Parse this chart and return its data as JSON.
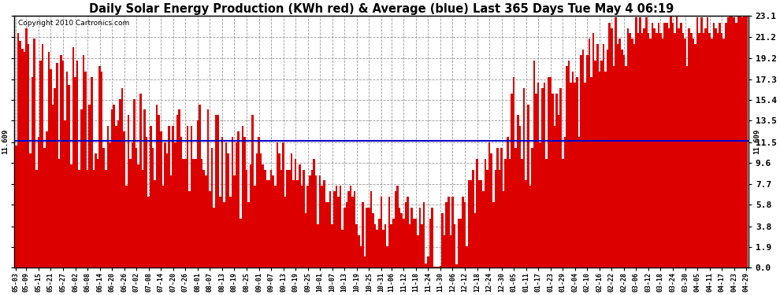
{
  "title": "Daily Solar Energy Production (KWh red) & Average (blue) Last 365 Days Tue May 4 06:19",
  "copyright": "Copyright 2010 Cartronics.com",
  "average_label": "11.609",
  "average_value": 11.609,
  "yticks": [
    0.0,
    1.9,
    3.8,
    5.8,
    7.7,
    9.6,
    11.5,
    13.5,
    15.4,
    17.3,
    19.2,
    21.2,
    23.1
  ],
  "bar_color": "#dd0000",
  "avg_line_color": "#0000cc",
  "background_color": "#ffffff",
  "grid_color": "#999999",
  "title_fontsize": 10.5,
  "x_labels": [
    "05-03",
    "05-09",
    "05-15",
    "05-21",
    "05-27",
    "06-02",
    "06-08",
    "06-14",
    "06-20",
    "06-26",
    "07-02",
    "07-08",
    "07-14",
    "07-20",
    "07-26",
    "08-01",
    "08-07",
    "08-13",
    "08-19",
    "08-25",
    "09-01",
    "09-07",
    "09-13",
    "09-19",
    "09-25",
    "10-01",
    "10-07",
    "10-13",
    "10-19",
    "10-25",
    "10-31",
    "11-06",
    "11-12",
    "11-18",
    "11-24",
    "11-30",
    "12-06",
    "12-12",
    "12-18",
    "12-24",
    "12-30",
    "01-05",
    "01-11",
    "01-17",
    "01-23",
    "01-29",
    "02-04",
    "02-10",
    "02-16",
    "02-22",
    "02-28",
    "03-06",
    "03-12",
    "03-18",
    "03-24",
    "03-30",
    "04-05",
    "04-11",
    "04-17",
    "04-23",
    "04-29"
  ],
  "values": [
    11.2,
    21.5,
    20.8,
    20.1,
    19.8,
    22.0,
    20.5,
    10.5,
    17.5,
    21.0,
    9.0,
    12.0,
    19.0,
    20.5,
    11.0,
    12.5,
    19.8,
    18.2,
    15.0,
    16.5,
    18.8,
    10.0,
    19.5,
    19.0,
    13.5,
    18.0,
    16.8,
    9.5,
    20.2,
    17.5,
    19.0,
    9.0,
    14.5,
    19.5,
    18.0,
    9.0,
    15.0,
    17.5,
    9.0,
    10.5,
    10.0,
    18.5,
    18.0,
    11.0,
    9.0,
    13.0,
    11.5,
    14.5,
    15.0,
    13.0,
    13.5,
    15.5,
    16.5,
    12.5,
    7.5,
    14.0,
    10.0,
    11.5,
    15.5,
    11.0,
    9.5,
    16.0,
    9.0,
    14.5,
    12.0,
    6.5,
    13.0,
    11.0,
    8.0,
    15.0,
    14.0,
    12.5,
    7.5,
    11.5,
    10.5,
    13.0,
    8.5,
    13.0,
    11.5,
    14.0,
    14.5,
    12.0,
    10.0,
    10.0,
    13.0,
    7.0,
    13.0,
    10.0,
    10.0,
    13.5,
    15.0,
    10.0,
    9.0,
    8.5,
    14.5,
    7.0,
    11.0,
    5.5,
    14.0,
    14.0,
    6.5,
    12.0,
    6.0,
    11.5,
    10.5,
    6.5,
    12.0,
    8.5,
    11.5,
    12.5,
    4.5,
    13.0,
    12.0,
    9.0,
    6.0,
    9.5,
    14.0,
    7.5,
    10.5,
    12.0,
    10.5,
    9.5,
    9.0,
    8.0,
    8.0,
    9.0,
    8.5,
    7.5,
    11.5,
    10.5,
    9.0,
    11.5,
    6.5,
    9.0,
    9.0,
    10.5,
    8.0,
    10.0,
    8.0,
    9.5,
    7.5,
    9.0,
    5.0,
    7.5,
    8.5,
    9.0,
    10.0,
    8.5,
    4.0,
    8.5,
    7.5,
    8.0,
    6.0,
    6.0,
    7.0,
    4.0,
    7.0,
    7.5,
    6.5,
    7.5,
    3.5,
    5.5,
    6.0,
    7.0,
    7.5,
    6.5,
    7.0,
    4.0,
    3.0,
    2.0,
    6.0,
    1.0,
    5.5,
    5.5,
    7.0,
    5.0,
    4.0,
    3.5,
    4.5,
    6.5,
    3.5,
    4.0,
    2.0,
    6.5,
    4.0,
    4.5,
    7.0,
    7.5,
    5.5,
    5.0,
    4.5,
    6.0,
    6.5,
    4.0,
    5.5,
    4.5,
    4.5,
    3.0,
    5.5,
    4.0,
    6.0,
    0.4,
    1.0,
    4.5,
    5.5,
    0.1,
    0.1,
    0.1,
    0.2,
    5.0,
    3.0,
    6.0,
    6.5,
    3.0,
    6.5,
    4.0,
    0.3,
    4.5,
    4.5,
    6.5,
    6.0,
    2.0,
    8.0,
    8.0,
    9.0,
    5.0,
    10.0,
    8.0,
    8.0,
    7.0,
    10.0,
    9.0,
    11.5,
    10.5,
    6.0,
    9.0,
    11.0,
    9.0,
    11.0,
    7.0,
    10.0,
    12.0,
    10.0,
    16.0,
    17.5,
    11.0,
    14.0,
    13.0,
    10.0,
    16.5,
    8.0,
    15.0,
    7.5,
    11.0,
    19.0,
    16.0,
    17.0,
    11.5,
    16.5,
    17.0,
    10.0,
    17.5,
    17.5,
    16.0,
    13.0,
    16.0,
    14.0,
    16.5,
    10.0,
    12.0,
    18.5,
    19.0,
    17.0,
    18.0,
    17.0,
    17.5,
    12.0,
    19.5,
    20.0,
    17.0,
    19.5,
    21.0,
    17.5,
    21.5,
    19.0,
    20.5,
    18.0,
    19.0,
    20.5,
    18.0,
    20.0,
    22.5,
    22.0,
    18.5,
    23.0,
    20.5,
    21.0,
    20.0,
    19.5,
    18.5,
    22.0,
    21.5,
    21.0,
    20.5,
    23.0,
    21.5,
    23.0,
    21.5,
    22.0,
    23.0,
    21.5,
    21.0,
    22.5,
    22.0,
    21.5,
    22.5,
    21.5,
    21.0,
    22.5,
    22.5,
    22.0,
    23.5,
    22.5,
    21.5,
    23.5,
    22.0,
    22.5,
    21.5,
    21.0,
    18.5,
    22.0,
    21.5,
    21.0,
    20.5,
    23.0,
    21.5,
    23.0,
    21.5,
    22.0,
    23.0,
    21.5,
    21.0,
    22.5,
    22.0,
    21.5,
    22.5,
    21.5,
    21.0,
    22.5,
    23.0,
    23.5,
    23.5,
    23.0,
    22.5,
    23.5,
    23.5,
    23.0,
    23.5,
    23.5
  ]
}
